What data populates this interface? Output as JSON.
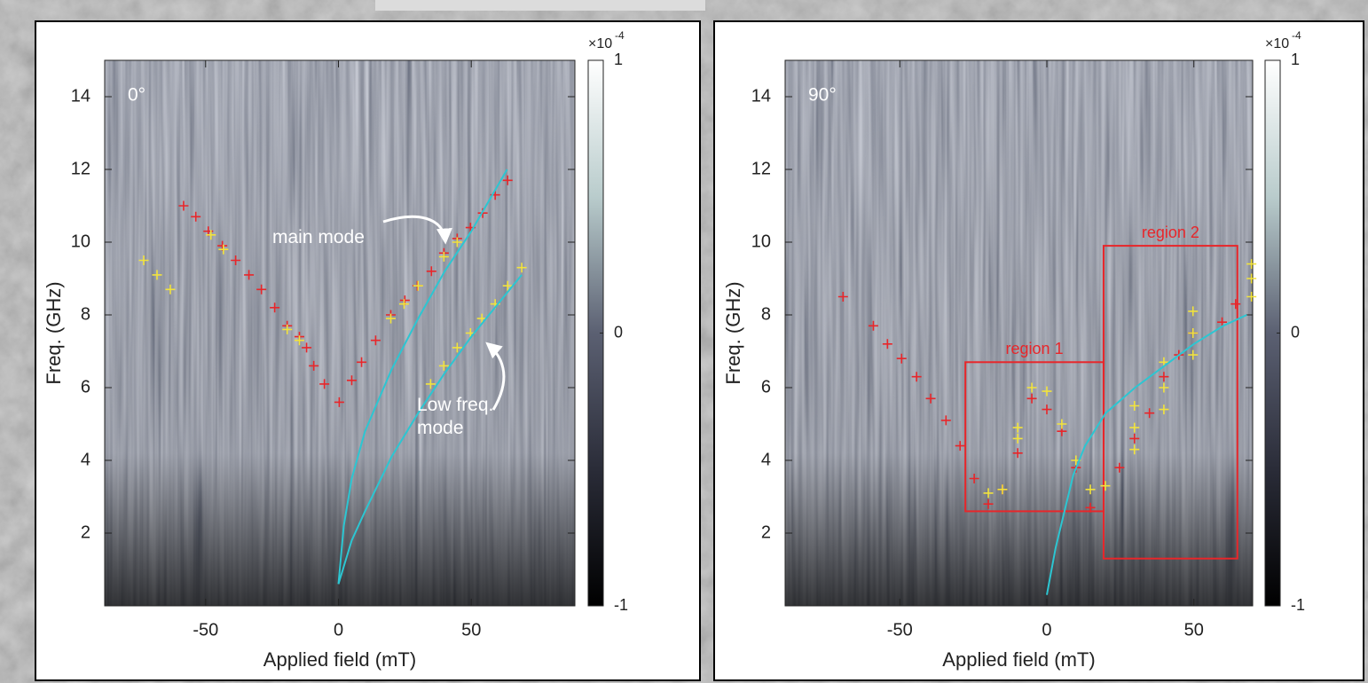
{
  "chart_data": [
    {
      "type": "scatter",
      "label": "0°",
      "xlabel": "Applied field (mT)",
      "ylabel": "Freq. (GHz)",
      "xlim": [
        -88,
        89
      ],
      "ylim": [
        0,
        15
      ],
      "xticks": [
        -50,
        0,
        50
      ],
      "yticks": [
        2,
        4,
        6,
        8,
        10,
        12,
        14
      ],
      "colorbar": {
        "lim": [
          -1,
          1
        ],
        "ticks": [
          -1,
          0,
          1
        ],
        "multiplier": "×10",
        "exponent": "-4"
      },
      "annotations": [
        "main mode",
        "Low freq. mode"
      ],
      "series": [
        {
          "color": "#e8262a",
          "marker": "+",
          "x": [
            -58.3,
            -53.7,
            -49,
            -43.7,
            -38.7,
            -33.7,
            -29,
            -24,
            -19.3,
            -14.7,
            -12,
            -9.3,
            -5.3,
            0.3,
            5,
            8.7,
            14,
            19.7,
            25,
            29.7,
            35,
            39.7,
            44.7,
            49.7,
            54.3,
            59,
            63.7
          ],
          "values": [
            11.0,
            10.7,
            10.3,
            9.9,
            9.5,
            9.1,
            8.7,
            8.2,
            7.7,
            7.4,
            7.1,
            6.6,
            6.1,
            5.6,
            6.2,
            6.7,
            7.3,
            8.0,
            8.4,
            8.8,
            9.2,
            9.7,
            10.1,
            10.4,
            10.8,
            11.3,
            11.7
          ]
        },
        {
          "color": "#f2e33c",
          "marker": "+",
          "x": [
            -73.3,
            -68.3,
            -63.3,
            -48,
            -43.3,
            -19.3,
            -14.7,
            19.7,
            24.7,
            30,
            34.7,
            39.7,
            44.7,
            49.7,
            54,
            59,
            63.7,
            69,
            39.7,
            44.7
          ],
          "values": [
            9.5,
            9.1,
            8.7,
            10.2,
            9.8,
            7.6,
            7.3,
            7.9,
            8.3,
            8.8,
            6.1,
            6.6,
            7.1,
            7.5,
            7.9,
            8.3,
            8.8,
            9.3,
            9.6,
            10.0
          ]
        },
        {
          "color": "#2cc6d2",
          "marker": "line",
          "x": [
            0,
            2,
            5,
            10,
            20,
            30,
            40,
            50,
            63.5
          ],
          "values": [
            0.6,
            2.2,
            3.5,
            4.8,
            6.5,
            7.9,
            9.2,
            10.3,
            12.0
          ]
        },
        {
          "color": "#2cc6d2",
          "marker": "line",
          "x": [
            0,
            5,
            10,
            20,
            30,
            40,
            50,
            60,
            69
          ],
          "values": [
            0.6,
            1.8,
            2.6,
            4.1,
            5.3,
            6.4,
            7.4,
            8.3,
            9.1
          ]
        }
      ]
    },
    {
      "type": "scatter",
      "label": "90°",
      "xlabel": "Applied field (mT)",
      "ylabel": "Freq. (GHz)",
      "xlim": [
        -89,
        70
      ],
      "ylim": [
        0,
        15
      ],
      "xticks": [
        -50,
        0,
        50
      ],
      "yticks": [
        2,
        4,
        6,
        8,
        10,
        12,
        14
      ],
      "colorbar": {
        "lim": [
          -1,
          1
        ],
        "ticks": [
          -1,
          0,
          1
        ],
        "multiplier": "×10",
        "exponent": "-4"
      },
      "regions": [
        {
          "label": "region 1",
          "xlim": [
            -27.7,
            19.3
          ],
          "ylim": [
            2.6,
            6.7
          ],
          "color": "#e8262a"
        },
        {
          "label": "region 2",
          "xlim": [
            19.3,
            64.8
          ],
          "ylim": [
            1.3,
            9.9
          ],
          "color": "#e8262a"
        }
      ],
      "series": [
        {
          "color": "#e8262a",
          "marker": "+",
          "x": [
            -69.3,
            -59,
            -54.2,
            -49.4,
            -44.3,
            -39.5,
            -34.3,
            -29.5,
            -24.7,
            -19.9,
            -15.1,
            -9.9,
            -5.1,
            0,
            5.1,
            9.9,
            14.8,
            24.7,
            29.8,
            34.9,
            39.8,
            44.9,
            49.7,
            59.6,
            64.2
          ],
          "values": [
            8.5,
            7.7,
            7.2,
            6.8,
            6.3,
            5.7,
            5.1,
            4.4,
            3.5,
            2.8,
            3.2,
            4.2,
            5.7,
            5.4,
            4.8,
            3.8,
            2.7,
            3.8,
            4.6,
            5.3,
            6.3,
            6.9,
            7.5,
            7.8,
            8.3
          ]
        },
        {
          "color": "#f2e33c",
          "marker": "+",
          "x": [
            -19.9,
            -15.1,
            -9.9,
            -9.9,
            -5.1,
            0,
            5.1,
            9.9,
            14.8,
            19.9,
            29.8,
            29.8,
            29.8,
            39.8,
            39.8,
            39.8,
            49.7,
            49.7,
            49.7,
            69.6,
            69.6,
            69.6
          ],
          "values": [
            3.1,
            3.2,
            4.9,
            4.6,
            6.0,
            5.9,
            5.0,
            4.0,
            3.2,
            3.3,
            5.5,
            4.9,
            4.3,
            6.7,
            6.0,
            5.4,
            8.1,
            7.5,
            6.9,
            9.4,
            9.0,
            8.5
          ]
        },
        {
          "color": "#2cc6d2",
          "marker": "line",
          "x": [
            0,
            3,
            6,
            9,
            13,
            20,
            30,
            40,
            50,
            60,
            68
          ],
          "values": [
            0.3,
            1.6,
            2.6,
            3.6,
            4.4,
            5.3,
            6.0,
            6.6,
            7.2,
            7.7,
            8.0
          ]
        }
      ]
    }
  ]
}
